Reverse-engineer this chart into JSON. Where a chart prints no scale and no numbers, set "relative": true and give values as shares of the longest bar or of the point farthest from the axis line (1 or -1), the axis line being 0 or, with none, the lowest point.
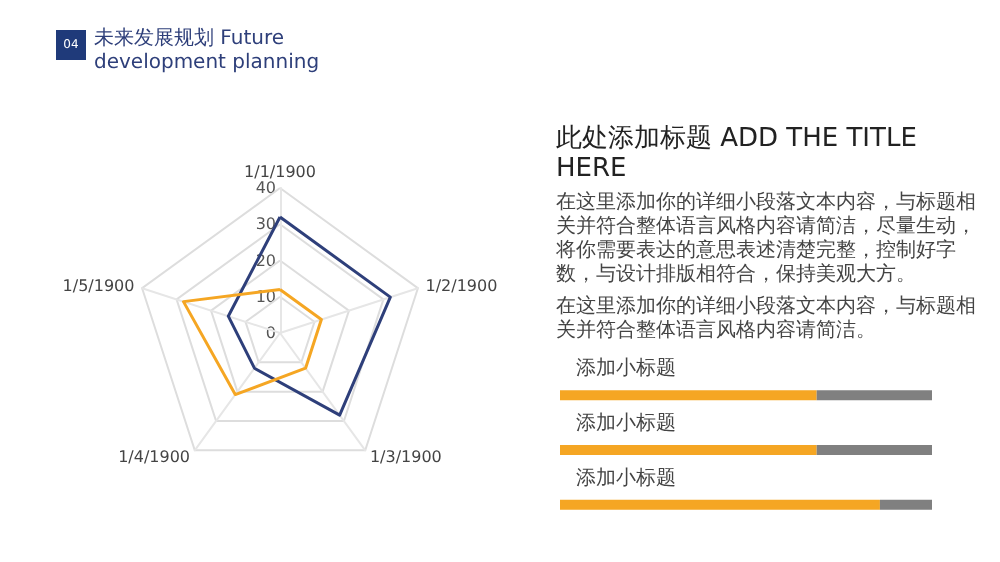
{
  "chart_data": [
    {
      "type": "radar",
      "title": "未来发展规划 Future development planning",
      "annotations": [
        "04"
      ],
      "categories": [
        "1/1/1900",
        "1/2/1900",
        "1/3/1900",
        "1/4/1900",
        "1/5/1900"
      ],
      "ylim": [
        0,
        40
      ],
      "yticks": [
        0,
        10,
        20,
        30,
        40
      ],
      "grid": true,
      "marker": "none",
      "series": [
        {
          "color": "#2e3f7a",
          "values": [
            32,
            32,
            28,
            12,
            15
          ]
        },
        {
          "color": "#f5a623",
          "values": [
            12,
            12,
            12,
            21,
            28
          ]
        }
      ]
    },
    {
      "type": "bar",
      "title": "此处添加标题 ADD THE TITLE HERE",
      "annotations": [
        "在这里添加你的详细小段落文本内容，与标题相关并符合整体语言风格内容请简洁，尽量生动，将你需要表达的意思表述清楚完整，控制好字数，与设计排版相符合，保持美观大方。",
        "在这里添加你的详细小段落文本内容，与标题相关并符合整体语言风格内容请简洁。"
      ],
      "orientation": "horizontal",
      "stacked": true,
      "relative": true,
      "categories": [
        "添加小标题",
        "添加小标题",
        "添加小标题"
      ],
      "series": [
        {
          "color": "#f5a623",
          "values": [
            0.69,
            0.69,
            0.86
          ]
        },
        {
          "color": "#808080",
          "values": [
            0.31,
            0.31,
            0.14
          ]
        }
      ]
    }
  ]
}
